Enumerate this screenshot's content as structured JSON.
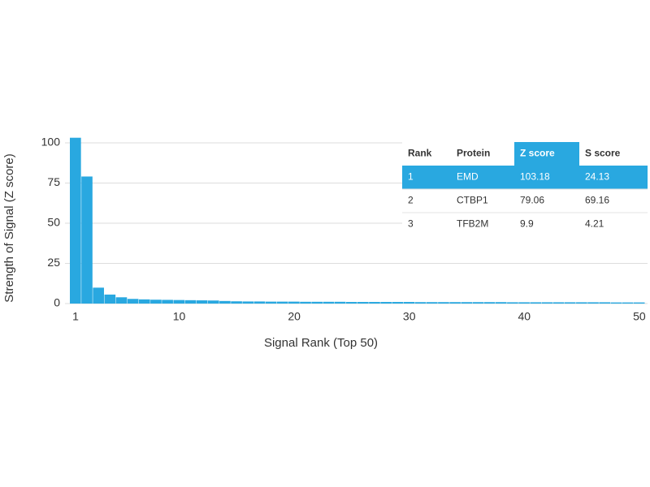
{
  "chart_data": {
    "type": "bar",
    "x": [
      1,
      2,
      3,
      4,
      5,
      6,
      7,
      8,
      9,
      10,
      11,
      12,
      13,
      14,
      15,
      16,
      17,
      18,
      19,
      20,
      21,
      22,
      23,
      24,
      25,
      26,
      27,
      28,
      29,
      30,
      31,
      32,
      33,
      34,
      35,
      36,
      37,
      38,
      39,
      40,
      41,
      42,
      43,
      44,
      45,
      46,
      47,
      48,
      49,
      50
    ],
    "values": [
      103.18,
      79.06,
      9.9,
      5.6,
      3.9,
      2.9,
      2.6,
      2.4,
      2.3,
      2.2,
      2.1,
      2.0,
      1.9,
      1.6,
      1.4,
      1.3,
      1.3,
      1.2,
      1.2,
      1.2,
      1.1,
      1.1,
      1.1,
      1.1,
      1.0,
      1.0,
      1.0,
      1.0,
      1.0,
      1.0,
      0.9,
      0.9,
      0.9,
      0.9,
      0.9,
      0.9,
      0.9,
      0.9,
      0.8,
      0.8,
      0.8,
      0.8,
      0.8,
      0.8,
      0.8,
      0.8,
      0.8,
      0.7,
      0.7,
      0.7
    ],
    "color": "#29a8e0",
    "xlim": [
      0.5,
      50.5
    ],
    "xticks": [
      1,
      10,
      20,
      30,
      40,
      50
    ],
    "ylim": [
      0,
      100
    ],
    "yticks": [
      0,
      25,
      50,
      75,
      100
    ],
    "grid": true,
    "x_label": "Signal Rank (Top 50)",
    "y_label": "Strength of Signal (Z score)"
  },
  "table": {
    "header": [
      "Rank",
      "Protein",
      "Z score",
      "S score"
    ],
    "rows": [
      [
        "1",
        "EMD",
        "103.18",
        "24.13"
      ],
      [
        "2",
        "CTBP1",
        "79.06",
        "69.16"
      ],
      [
        "3",
        "TFB2M",
        "9.9",
        "4.21"
      ]
    ]
  }
}
